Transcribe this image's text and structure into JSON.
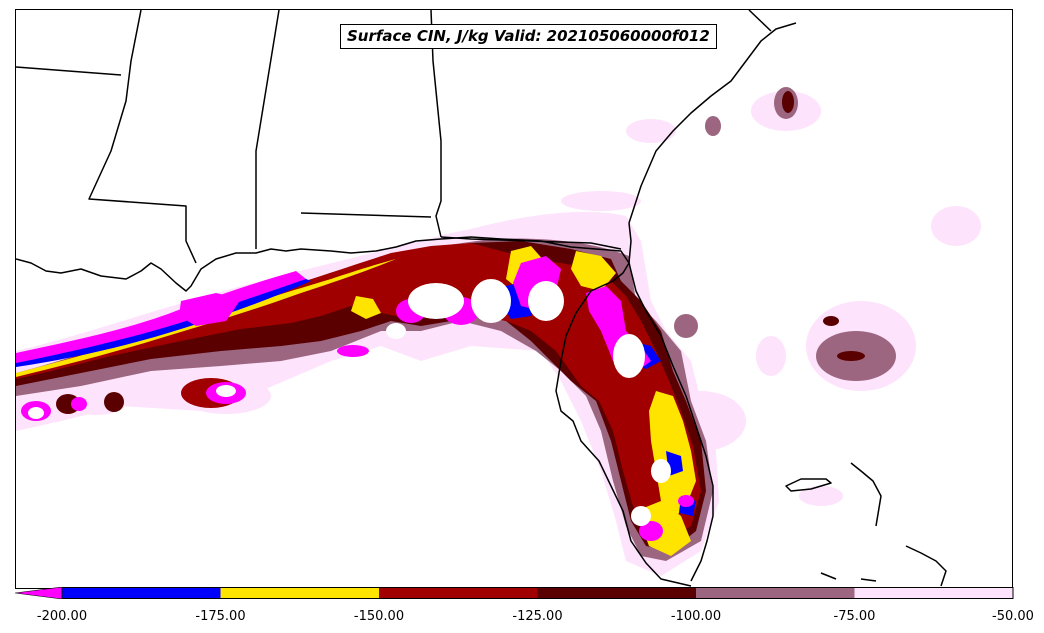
{
  "title": "Surface CIN, J/kg Valid: 202105060000f012",
  "colorbar": {
    "ticks": [
      "-200.00",
      "-175.00",
      "-150.00",
      "-125.00",
      "-100.00",
      "-75.00",
      "-50.00"
    ],
    "bins": [
      {
        "from": -200,
        "to": -175,
        "color": "#0000ff"
      },
      {
        "from": -175,
        "to": -150,
        "color": "#ffe400"
      },
      {
        "from": -150,
        "to": -125,
        "color": "#a00000"
      },
      {
        "from": -125,
        "to": -100,
        "color": "#5a0000"
      },
      {
        "from": -100,
        "to": -75,
        "color": "#9c6680"
      },
      {
        "from": -75,
        "to": -50,
        "color": "#fde3fb"
      }
    ],
    "under_color": "#ff00ff",
    "extend": "min"
  },
  "colors": {
    "very_low": "#ff00ff",
    "blue": "#0000ff",
    "yellow": "#ffe400",
    "red": "#a00000",
    "dark_red": "#5a0000",
    "mauve": "#9c6680",
    "pale_pink": "#fde3fb",
    "coastline": "#000000"
  }
}
